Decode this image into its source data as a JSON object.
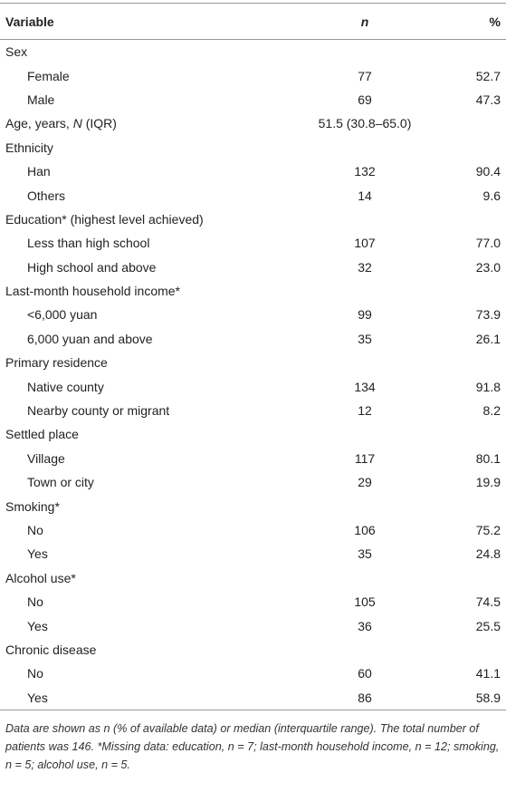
{
  "table": {
    "header": [
      "Variable",
      "n",
      "%"
    ],
    "groups": [
      {
        "label": "Sex",
        "items": [
          {
            "label": "Female",
            "n": "77",
            "pct": "52.7"
          },
          {
            "label": "Male",
            "n": "69",
            "pct": "47.3"
          }
        ]
      },
      {
        "label_parts": [
          {
            "text": "Age, years, "
          },
          {
            "text": "N",
            "italic": true
          },
          {
            "text": " (IQR)"
          }
        ],
        "value": "51.5 (30.8–65.0)"
      },
      {
        "label": "Ethnicity",
        "items": [
          {
            "label": "Han",
            "n": "132",
            "pct": "90.4"
          },
          {
            "label": "Others",
            "n": "14",
            "pct": "9.6"
          }
        ]
      },
      {
        "label": "Education* (highest level achieved)",
        "items": [
          {
            "label": "Less than high school",
            "n": "107",
            "pct": "77.0"
          },
          {
            "label": "High school and above",
            "n": "32",
            "pct": "23.0"
          }
        ]
      },
      {
        "label": "Last-month household income*",
        "items": [
          {
            "label": "<6,000 yuan",
            "n": "99",
            "pct": "73.9"
          },
          {
            "label": "6,000 yuan and above",
            "n": "35",
            "pct": "26.1"
          }
        ]
      },
      {
        "label": "Primary residence",
        "items": [
          {
            "label": "Native county",
            "n": "134",
            "pct": "91.8"
          },
          {
            "label": "Nearby county or migrant",
            "n": "12",
            "pct": "8.2"
          }
        ]
      },
      {
        "label": "Settled place",
        "items": [
          {
            "label": "Village",
            "n": "117",
            "pct": "80.1"
          },
          {
            "label": "Town or city",
            "n": "29",
            "pct": "19.9"
          }
        ]
      },
      {
        "label": "Smoking*",
        "items": [
          {
            "label": "No",
            "n": "106",
            "pct": "75.2"
          },
          {
            "label": "Yes",
            "n": "35",
            "pct": "24.8"
          }
        ]
      },
      {
        "label": "Alcohol use*",
        "items": [
          {
            "label": "No",
            "n": "105",
            "pct": "74.5"
          },
          {
            "label": "Yes",
            "n": "36",
            "pct": "25.5"
          }
        ]
      },
      {
        "label": "Chronic disease",
        "items": [
          {
            "label": "No",
            "n": "60",
            "pct": "41.1"
          },
          {
            "label": "Yes",
            "n": "86",
            "pct": "58.9"
          }
        ]
      }
    ],
    "footnote": "Data are shown as n (% of available data) or median (interquartile range). The total number of patients was 146. *Missing data: education, n = 7; last-month household income, n = 12; smoking, n = 5; alcohol use, n = 5."
  }
}
